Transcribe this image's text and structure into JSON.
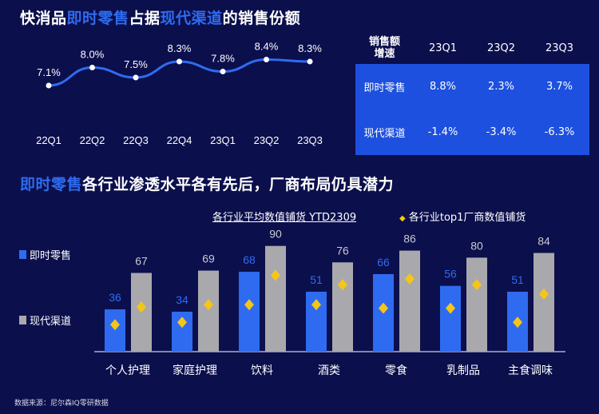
{
  "title1": {
    "a": "快消品",
    "b": "即时零售",
    "c": "占据",
    "d": "现代渠道",
    "e": "的销售份额"
  },
  "title2": {
    "a": "即时零售",
    "b": "各行业渗透水平各有先后，厂商布局仍具潜力"
  },
  "colors": {
    "bg": "#0b0f4c",
    "blue": "#2f6bf0",
    "gray": "#a9a9ad",
    "diamond": "#f5c518",
    "table": "#1d50de"
  },
  "chart_data": [
    {
      "type": "line",
      "categories": [
        "22Q1",
        "22Q2",
        "22Q3",
        "22Q4",
        "23Q1",
        "23Q2",
        "23Q3"
      ],
      "values": [
        7.1,
        8.0,
        7.5,
        8.3,
        7.8,
        8.4,
        8.3
      ],
      "labels": [
        "7.1%",
        "8.0%",
        "7.5%",
        "8.3%",
        "7.8%",
        "8.4%",
        "8.3%"
      ],
      "title": "快消品即时零售占据现代渠道的销售份额"
    },
    {
      "type": "table",
      "header": [
        "销售额\n增速",
        "23Q1",
        "23Q2",
        "23Q3"
      ],
      "rows": [
        [
          "即时零售",
          "8.8%",
          "2.3%",
          "3.7%"
        ],
        [
          "现代渠道",
          "-1.4%",
          "-3.4%",
          "-6.3%"
        ]
      ]
    },
    {
      "type": "bar",
      "title": "各行业平均数值铺货 YTD2309",
      "categories": [
        "个人护理",
        "家庭护理",
        "饮料",
        "酒类",
        "零食",
        "乳制品",
        "主食调味"
      ],
      "series": [
        {
          "name": "即时零售",
          "values": [
            36,
            34,
            68,
            51,
            66,
            56,
            51
          ]
        },
        {
          "name": "现代渠道",
          "values": [
            67,
            69,
            90,
            76,
            86,
            80,
            84
          ]
        }
      ],
      "top1": {
        "name": "各行业top1厂商数值铺货",
        "values_instant": [
          23,
          25,
          40,
          40,
          37,
          37,
          25
        ],
        "values_modern": [
          38,
          40,
          65,
          57,
          62,
          57,
          49
        ]
      },
      "ylim": [
        0,
        100
      ]
    }
  ],
  "source": "数据来源：尼尔森IQ零研数据"
}
